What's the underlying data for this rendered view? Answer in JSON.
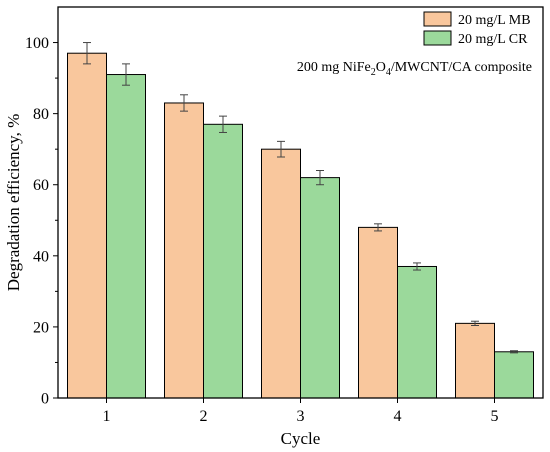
{
  "chart_data": {
    "type": "bar",
    "categories": [
      "1",
      "2",
      "3",
      "4",
      "5"
    ],
    "series": [
      {
        "name": "20 mg/L MB",
        "color": "#F9C79D",
        "values": [
          97,
          83,
          70,
          48,
          21
        ],
        "errors": [
          3,
          2.3,
          2.2,
          1,
          0.6
        ]
      },
      {
        "name": "20 mg/L CR",
        "color": "#9BD99B",
        "values": [
          91,
          77,
          62,
          37,
          13
        ],
        "errors": [
          3,
          2.3,
          2,
          1,
          0.3
        ]
      }
    ],
    "xlabel": "Cycle",
    "ylabel": "Degradation efficiency, %",
    "ylim": [
      0,
      110
    ],
    "yticks": [
      0,
      20,
      40,
      60,
      80,
      100
    ],
    "annotation": {
      "prefix": "200 mg NiFe",
      "sub1": "2",
      "mid": "O",
      "sub2": "4",
      "suffix": "/MWCNT/CA composite"
    },
    "legend_position": "top-right",
    "grid": false
  }
}
